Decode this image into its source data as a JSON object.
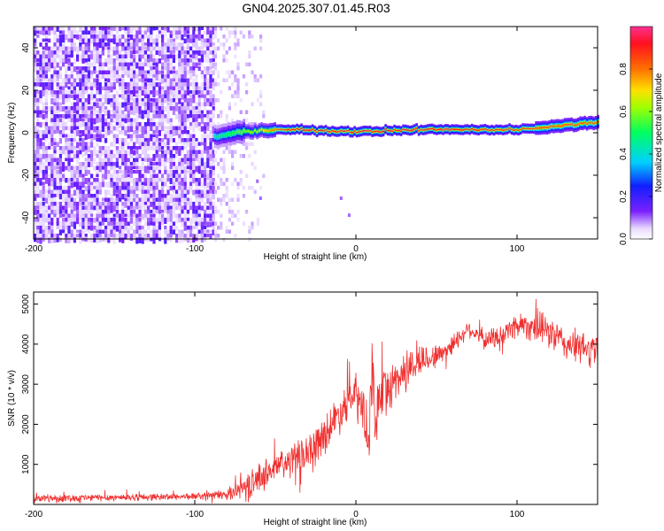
{
  "title": "GN04.2025.307.01.45.R03",
  "chart_data": [
    {
      "type": "heatmap",
      "title": "GN04.2025.307.01.45.R03",
      "xlabel": "Height of straight line (km)",
      "ylabel": "Frequency (Hz)",
      "xlim": [
        -200,
        150
      ],
      "ylim": [
        -50,
        50
      ],
      "xticks": [
        -200,
        -100,
        0,
        100
      ],
      "yticks": [
        -40,
        -20,
        0,
        20,
        40
      ],
      "colorbar": {
        "label": "Normalized spectral amplitude",
        "range": [
          0,
          1
        ],
        "ticks": [
          0.0,
          0.2,
          0.4,
          0.6,
          0.8
        ],
        "tick_labels": [
          "0.0",
          "0.2",
          "0.4",
          "0.6",
          "0.8"
        ]
      },
      "ridge": {
        "description_points_x_km": [
          -88,
          -75,
          -60,
          -40,
          -20,
          0,
          20,
          40,
          60,
          80,
          100,
          120,
          150
        ],
        "center_freq_hz": [
          -2,
          0,
          1,
          1.5,
          1,
          0.5,
          1,
          1.5,
          1.5,
          1.5,
          1.5,
          3,
          5
        ],
        "peak_amplitude": [
          0.45,
          0.55,
          0.7,
          0.95,
          0.95,
          0.95,
          0.95,
          0.95,
          0.95,
          0.9,
          0.9,
          0.85,
          0.85
        ]
      },
      "noise_region_x_km": [
        -200,
        -88
      ],
      "sparse_noise_x_km": [
        -88,
        -58
      ]
    },
    {
      "type": "line",
      "xlabel": "Height of straight line (km)",
      "ylabel": "SNR (10 * v/v)",
      "xlim": [
        -200,
        150
      ],
      "ylim": [
        0,
        5300
      ],
      "xticks": [
        -200,
        -100,
        0,
        100
      ],
      "yticks": [
        1000,
        2000,
        3000,
        4000,
        5000
      ],
      "series": [
        {
          "name": "SNR",
          "color": "#f03030",
          "envelope_x_km": [
            -200,
            -100,
            -80,
            -75,
            -65,
            -55,
            -45,
            -35,
            -25,
            -15,
            -5,
            0,
            5,
            8,
            10,
            12,
            15,
            20,
            30,
            40,
            50,
            60,
            70,
            80,
            90,
            100,
            110,
            120,
            130,
            140,
            150
          ],
          "mean_snr": [
            150,
            200,
            250,
            350,
            500,
            800,
            1000,
            1200,
            1500,
            2000,
            2600,
            2700,
            2300,
            1200,
            3500,
            2000,
            2800,
            2900,
            3300,
            3600,
            3700,
            4000,
            4400,
            4100,
            4200,
            4500,
            4450,
            4300,
            4000,
            3900,
            3850
          ],
          "noise_amplitude": [
            120,
            100,
            150,
            250,
            400,
            450,
            500,
            500,
            550,
            600,
            600,
            700,
            900,
            900,
            900,
            900,
            700,
            700,
            650,
            500,
            350,
            300,
            250,
            300,
            350,
            400,
            450,
            500,
            500,
            500,
            500
          ]
        }
      ]
    }
  ]
}
